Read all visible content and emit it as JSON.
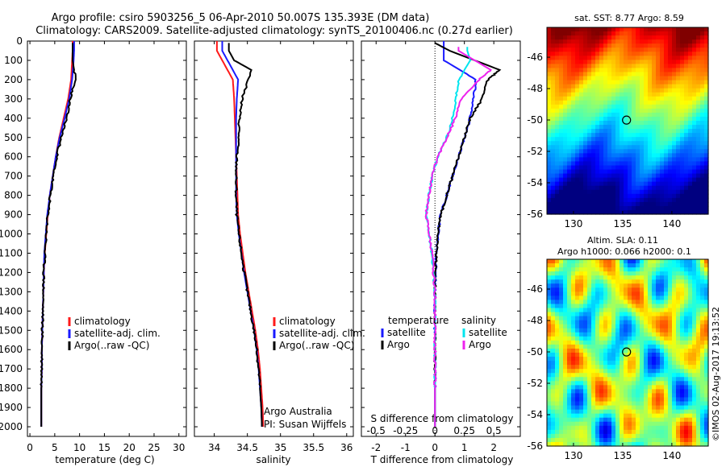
{
  "header": {
    "line1": "Argo profile: csiro 5903256_5 06-Apr-2010 50.007S 135.393E (DM data)",
    "line2": "Climatology: CARS2009. Satellite-adjusted climatology: synTS_20100406.nc (0.27d earlier)"
  },
  "credit": "©IMOS 02-Aug-2017 19:13:52",
  "colors": {
    "climatology": "#ff1a1a",
    "satellite": "#1a1aff",
    "argo": "#000000",
    "salinity_satellite": "#00e5ee",
    "salinity_argo": "#ee22ee"
  },
  "chart_data": [
    {
      "type": "line",
      "xlabel": "temperature (deg C)",
      "ylabel": "",
      "xlim": [
        -0.5,
        31.5
      ],
      "ylim": [
        2050,
        0
      ],
      "xticks": [
        0,
        5,
        10,
        15,
        20,
        25,
        30
      ],
      "yticks": [
        0,
        100,
        200,
        300,
        400,
        500,
        600,
        700,
        800,
        900,
        1000,
        1100,
        1200,
        1300,
        1400,
        1500,
        1600,
        1700,
        1800,
        1900,
        2000
      ],
      "legend": [
        "climatology",
        "satellite-adj. clim.",
        "Argo(..raw -QC)"
      ],
      "series": [
        {
          "name": "climatology",
          "color": "#ff1a1a",
          "x": [
            8.6,
            8.6,
            8.5,
            8.3,
            7.7,
            6.8,
            5.9,
            5.2,
            4.6,
            4.0,
            3.6,
            3.3,
            3.0,
            2.8,
            2.7,
            2.6,
            2.5,
            2.4,
            2.4,
            2.3,
            2.3,
            2.3
          ],
          "y": [
            0,
            50,
            100,
            200,
            300,
            400,
            500,
            600,
            700,
            800,
            900,
            1000,
            1100,
            1200,
            1300,
            1400,
            1500,
            1600,
            1700,
            1800,
            1900,
            2000
          ]
        },
        {
          "name": "satellite-adj. clim.",
          "color": "#1a1aff",
          "x": [
            8.9,
            8.9,
            8.8,
            8.5,
            7.9,
            7.0,
            6.0,
            5.2,
            4.6,
            4.0,
            3.5,
            3.2,
            2.9,
            2.8,
            2.7,
            2.6,
            2.5,
            2.4,
            2.4,
            2.3,
            2.3,
            2.3
          ],
          "y": [
            0,
            50,
            100,
            200,
            300,
            400,
            500,
            600,
            700,
            800,
            900,
            1000,
            1100,
            1200,
            1300,
            1400,
            1500,
            1600,
            1700,
            1800,
            1900,
            2000
          ]
        },
        {
          "name": "Argo(..raw -QC)",
          "color": "#000000",
          "x": [
            8.6,
            8.6,
            8.6,
            9.2,
            8.1,
            7.4,
            6.3,
            5.4,
            4.7,
            4.1,
            3.6,
            3.3,
            3.0,
            2.8,
            2.7,
            2.6,
            2.5,
            2.4,
            2.4,
            2.3,
            2.3,
            2.3
          ],
          "y": [
            10,
            50,
            100,
            200,
            300,
            400,
            500,
            600,
            700,
            800,
            900,
            1000,
            1100,
            1200,
            1300,
            1400,
            1500,
            1600,
            1700,
            1800,
            1900,
            2000
          ]
        }
      ]
    },
    {
      "type": "line",
      "xlabel": "salinity",
      "ylabel": "",
      "xlim": [
        33.7,
        36.1
      ],
      "ylim": [
        2050,
        0
      ],
      "xticks": [
        34,
        34.5,
        35,
        35.5,
        36
      ],
      "legend": [
        "climatology",
        "satellite-adj. clim.",
        "Argo(..raw -QC)"
      ],
      "annotations": [
        "Argo Australia",
        "PI: Susan Wijffels"
      ],
      "series": [
        {
          "name": "climatology",
          "color": "#ff1a1a",
          "x": [
            34.04,
            34.04,
            34.12,
            34.28,
            34.3,
            34.31,
            34.32,
            34.33,
            34.34,
            34.35,
            34.36,
            34.39,
            34.43,
            34.47,
            34.52,
            34.57,
            34.62,
            34.66,
            34.69,
            34.71,
            34.73,
            34.74
          ],
          "y": [
            0,
            50,
            100,
            200,
            300,
            400,
            500,
            600,
            700,
            800,
            900,
            1000,
            1100,
            1200,
            1300,
            1400,
            1500,
            1600,
            1700,
            1800,
            1900,
            2000
          ]
        },
        {
          "name": "satellite-adj. clim.",
          "color": "#1a1aff",
          "x": [
            34.12,
            34.12,
            34.2,
            34.36,
            34.34,
            34.33,
            34.33,
            34.33,
            34.33,
            34.33,
            34.34,
            34.37,
            34.41,
            34.45,
            34.5,
            34.55,
            34.6,
            34.64,
            34.67,
            34.69,
            34.71,
            34.72
          ],
          "y": [
            0,
            50,
            100,
            200,
            300,
            400,
            500,
            600,
            700,
            800,
            900,
            1000,
            1100,
            1200,
            1300,
            1400,
            1500,
            1600,
            1700,
            1800,
            1900,
            2000
          ]
        },
        {
          "name": "Argo(..raw -QC)",
          "color": "#000000",
          "x": [
            34.22,
            34.22,
            34.3,
            34.56,
            34.42,
            34.38,
            34.37,
            34.34,
            34.33,
            34.33,
            34.34,
            34.37,
            34.41,
            34.45,
            34.5,
            34.55,
            34.6,
            34.64,
            34.67,
            34.69,
            34.71,
            34.72
          ],
          "y": [
            10,
            50,
            100,
            150,
            300,
            400,
            500,
            600,
            700,
            800,
            900,
            1000,
            1100,
            1200,
            1300,
            1400,
            1500,
            1600,
            1700,
            1800,
            1900,
            2000
          ]
        }
      ]
    },
    {
      "type": "line",
      "xlabel": "T difference from climatology",
      "xlabel_top": "S difference from climatology",
      "xlim": [
        -2.5,
        2.9
      ],
      "ylim": [
        2050,
        0
      ],
      "xticks": [
        -2,
        -1,
        0,
        1,
        2
      ],
      "xticks_salinity": [
        -0.5,
        -0.25,
        0,
        0.25,
        0.5
      ],
      "legend": {
        "temperature": [
          "satellite",
          "Argo"
        ],
        "salinity": [
          "satellite",
          "Argo"
        ]
      },
      "legend_titles": [
        "temperature",
        "salinity"
      ],
      "series": [
        {
          "name": "temperature satellite",
          "color": "#1a1aff",
          "x": [
            0.3,
            0.3,
            0.3,
            1.4,
            1.3,
            1.2,
            1.0,
            0.8,
            0.6,
            0.4,
            0.2,
            0.1,
            0.05,
            0.02,
            0.0,
            0.0,
            0.0,
            0.0,
            0.0,
            0.0,
            0.0,
            0.0
          ],
          "y": [
            0,
            50,
            100,
            200,
            300,
            400,
            500,
            600,
            700,
            800,
            900,
            1000,
            1100,
            1200,
            1300,
            1400,
            1500,
            1600,
            1700,
            1800,
            1900,
            2000
          ]
        },
        {
          "name": "temperature Argo",
          "color": "#000000",
          "x": [
            0.0,
            0.5,
            2.2,
            1.8,
            1.6,
            1.2,
            1.0,
            0.8,
            0.6,
            0.4,
            0.2,
            0.1,
            0.05,
            0.02,
            0.0,
            0.0,
            0.0,
            0.0,
            0.0,
            0.0,
            0.0,
            0.0
          ],
          "y": [
            10,
            50,
            150,
            200,
            300,
            400,
            500,
            600,
            700,
            800,
            900,
            1000,
            1100,
            1200,
            1300,
            1400,
            1500,
            1600,
            1700,
            1800,
            1900,
            2000
          ]
        },
        {
          "name": "salinity satellite",
          "color": "#00e5ee",
          "x": [
            1.1,
            1.1,
            1.2,
            0.8,
            0.7,
            0.6,
            0.4,
            0.1,
            -0.1,
            -0.2,
            -0.3,
            -0.2,
            -0.1,
            -0.05,
            0.0,
            0.0,
            0.0,
            0.0,
            0.0,
            0.0,
            0.0,
            0.0
          ],
          "y": [
            30,
            50,
            100,
            200,
            300,
            400,
            500,
            600,
            700,
            800,
            900,
            1000,
            1100,
            1200,
            1300,
            1400,
            1500,
            1600,
            1700,
            1800,
            1900,
            2000
          ]
        },
        {
          "name": "salinity Argo",
          "color": "#ee22ee",
          "x": [
            0.8,
            0.8,
            1.9,
            1.5,
            0.9,
            0.7,
            0.4,
            0.1,
            -0.1,
            -0.2,
            -0.3,
            -0.2,
            -0.1,
            -0.05,
            0.0,
            0.0,
            0.0,
            0.0,
            0.0,
            0.0,
            0.0,
            0.0
          ],
          "y": [
            30,
            50,
            150,
            200,
            300,
            400,
            500,
            600,
            700,
            800,
            900,
            1000,
            1100,
            1200,
            1300,
            1400,
            1500,
            1600,
            1700,
            1800,
            1900,
            2000
          ]
        }
      ]
    },
    {
      "type": "heatmap",
      "title": "sat. SST: 8.77 Argo: 8.59",
      "xticks": [
        130,
        135,
        140
      ],
      "yticks": [
        -46,
        -48,
        -50,
        -52,
        -54,
        -56
      ],
      "xlim": [
        127.3,
        143.7
      ],
      "ylim": [
        -56,
        -44.1
      ],
      "marker": {
        "lon": 135.393,
        "lat": -50.007
      }
    },
    {
      "type": "heatmap",
      "title": "Altim. SLA: 0.11",
      "subtitle": "Argo h1000: 0.066 h2000: 0.1",
      "xticks": [
        130,
        135,
        140
      ],
      "yticks": [
        -46,
        -48,
        -50,
        -52,
        -54,
        -56
      ],
      "xlim": [
        127.3,
        143.7
      ],
      "ylim": [
        -56,
        -44.1
      ],
      "marker": {
        "lon": 135.393,
        "lat": -50.007
      }
    }
  ]
}
